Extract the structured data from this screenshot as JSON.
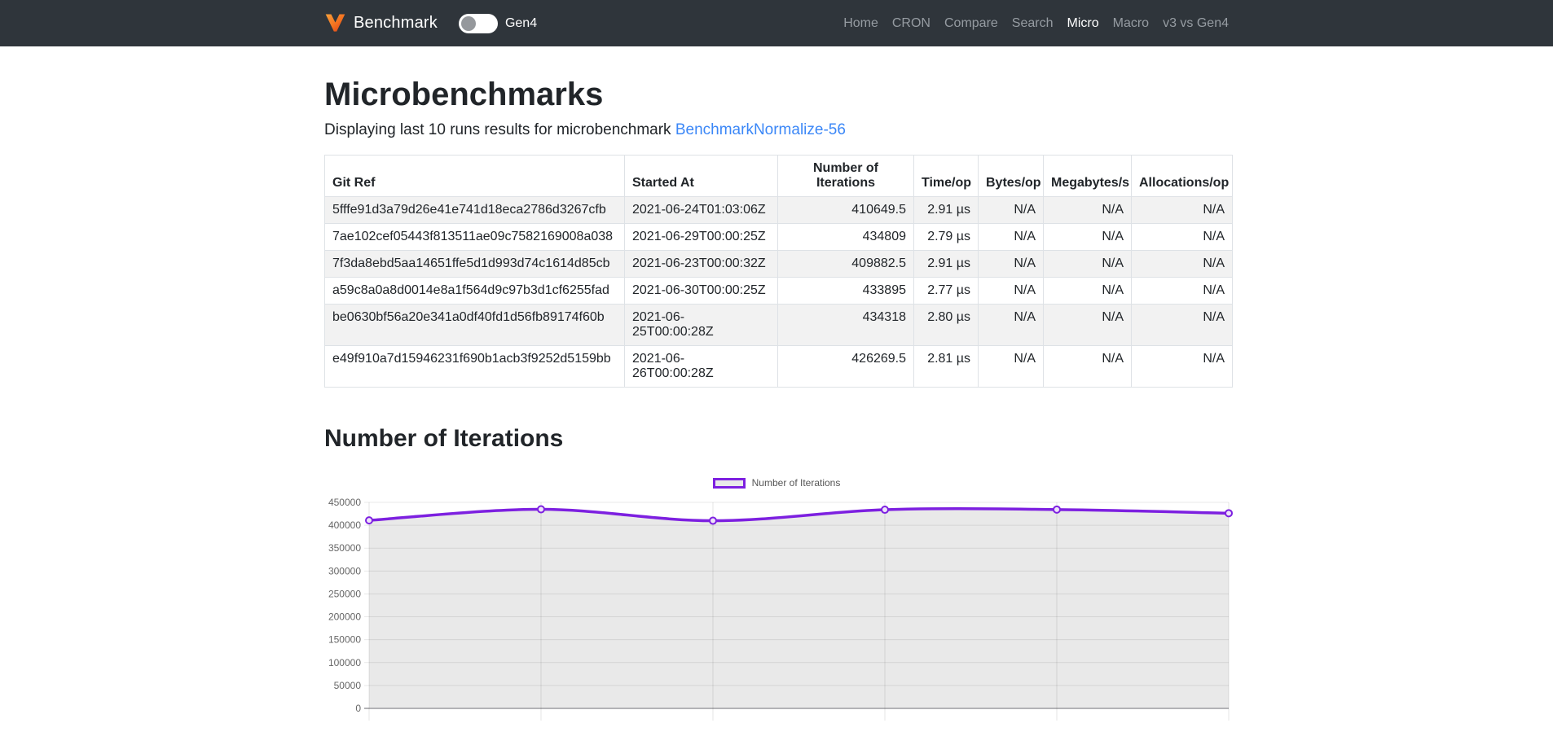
{
  "navbar": {
    "brand": "Benchmark",
    "toggle_label": "Gen4",
    "toggle_state": "off",
    "links": [
      {
        "label": "Home",
        "active": false
      },
      {
        "label": "CRON",
        "active": false
      },
      {
        "label": "Compare",
        "active": false
      },
      {
        "label": "Search",
        "active": false
      },
      {
        "label": "Micro",
        "active": true
      },
      {
        "label": "Macro",
        "active": false
      },
      {
        "label": "v3 vs Gen4",
        "active": false
      }
    ]
  },
  "page": {
    "title": "Microbenchmarks",
    "subtitle_prefix": "Displaying last 10 runs results for microbenchmark ",
    "subtitle_link": "BenchmarkNormalize-56"
  },
  "table": {
    "columns": [
      "Git Ref",
      "Started At",
      "Number of Iterations",
      "Time/op",
      "Bytes/op",
      "Megabytes/s",
      "Allocations/op"
    ],
    "rows": [
      {
        "git_ref": "5fffe91d3a79d26e41e741d18eca2786d3267cfb",
        "started_at": "2021-06-24T01:03:06Z",
        "iterations": "410649.5",
        "time_op": "2.91 µs",
        "bytes_op": "N/A",
        "megabytes_s": "N/A",
        "allocations_op": "N/A"
      },
      {
        "git_ref": "7ae102cef05443f813511ae09c7582169008a038",
        "started_at": "2021-06-29T00:00:25Z",
        "iterations": "434809",
        "time_op": "2.79 µs",
        "bytes_op": "N/A",
        "megabytes_s": "N/A",
        "allocations_op": "N/A"
      },
      {
        "git_ref": "7f3da8ebd5aa14651ffe5d1d993d74c1614d85cb",
        "started_at": "2021-06-23T00:00:32Z",
        "iterations": "409882.5",
        "time_op": "2.91 µs",
        "bytes_op": "N/A",
        "megabytes_s": "N/A",
        "allocations_op": "N/A"
      },
      {
        "git_ref": "a59c8a0a8d0014e8a1f564d9c97b3d1cf6255fad",
        "started_at": "2021-06-30T00:00:25Z",
        "iterations": "433895",
        "time_op": "2.77 µs",
        "bytes_op": "N/A",
        "megabytes_s": "N/A",
        "allocations_op": "N/A"
      },
      {
        "git_ref": "be0630bf56a20e341a0df40fd1d56fb89174f60b",
        "started_at": "2021-06-\n25T00:00:28Z",
        "iterations": "434318",
        "time_op": "2.80 µs",
        "bytes_op": "N/A",
        "megabytes_s": "N/A",
        "allocations_op": "N/A"
      },
      {
        "git_ref": "e49f910a7d15946231f690b1acb3f9252d5159bb",
        "started_at": "2021-06-\n26T00:00:28Z",
        "iterations": "426269.5",
        "time_op": "2.81 µs",
        "bytes_op": "N/A",
        "megabytes_s": "N/A",
        "allocations_op": "N/A"
      }
    ]
  },
  "section": {
    "title": "Number of Iterations"
  },
  "chart_data": {
    "type": "line",
    "title": "Number of Iterations",
    "legend": [
      "Number of Iterations"
    ],
    "legend_position": "top",
    "categories": [
      "5fffe91d3a79d26e41e741d18eca2786d3267cfb",
      "7ae102cef05443f813511ae09c7582169008a038",
      "7f3da8ebd5aa14651ffe5d1d993d74c1614d85cb",
      "a59c8a0a8d0014e8a1f564d9c97b3d1cf6255fad",
      "be0630bf56a20e341a0df40fd1d56fb89174f60b",
      "e49f910a7d15946231f690b1acb3f9252d5159bb"
    ],
    "values": [
      410649.5,
      434809,
      409882.5,
      433895,
      434318,
      426269.5
    ],
    "xlabel": "",
    "ylabel": "",
    "ylim": [
      0,
      450000
    ],
    "ytick_step": 50000,
    "grid": true,
    "line_color": "#7d20e0",
    "point_fill_color": "#ede4f8",
    "area_fill_color": "#e9e9e9"
  },
  "colors": {
    "navbar_bg": "#2f353b",
    "link_blue": "#3b87f7",
    "accent_purple": "#7d20e0"
  }
}
